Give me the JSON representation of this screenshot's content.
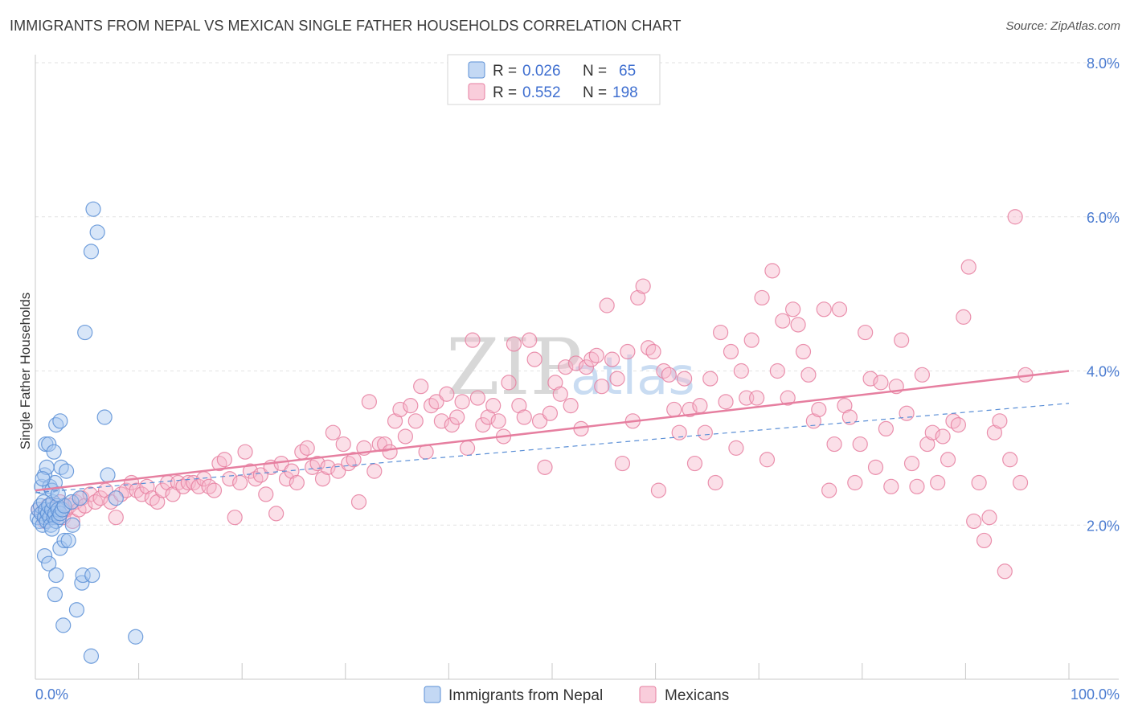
{
  "header": {
    "title": "IMMIGRANTS FROM NEPAL VS MEXICAN SINGLE FATHER HOUSEHOLDS CORRELATION CHART",
    "source": "Source: ZipAtlas.com"
  },
  "watermark": {
    "zip": "ZIP",
    "atlas": "atlas"
  },
  "legend": {
    "r_label": "R =",
    "n_label": "N =",
    "rows": [
      {
        "name": "Immigrants from Nepal",
        "r": "0.026",
        "n": "65",
        "fill": "#a9c8f0",
        "stroke": "#5b8fd6"
      },
      {
        "name": "Mexicans",
        "r": "0.552",
        "n": "198",
        "fill": "#f6b8cc",
        "stroke": "#e67fa0"
      }
    ]
  },
  "chart_data": {
    "type": "scatter",
    "title": "IMMIGRANTS FROM NEPAL VS MEXICAN SINGLE FATHER HOUSEHOLDS CORRELATION CHART",
    "xlabel": "",
    "ylabel": "Single Father Households",
    "xlim": [
      0,
      100
    ],
    "ylim": [
      0,
      8
    ],
    "x_tick_labels": [
      "0.0%",
      "100.0%"
    ],
    "y_ticks": [
      2,
      4,
      6,
      8
    ],
    "y_tick_labels": [
      "2.0%",
      "4.0%",
      "6.0%",
      "8.0%"
    ],
    "series": [
      {
        "name": "Immigrants from Nepal",
        "color": "#5b8fd6",
        "fill": "#a9c8f0",
        "trend": {
          "x0": 0,
          "y0": 2.42,
          "x1": 100,
          "y1": 3.58,
          "style": "dashed"
        },
        "points": [
          [
            0.2,
            2.1
          ],
          [
            0.3,
            2.2
          ],
          [
            0.4,
            2.05
          ],
          [
            0.5,
            2.25
          ],
          [
            0.6,
            2.15
          ],
          [
            0.7,
            2.0
          ],
          [
            0.8,
            2.3
          ],
          [
            0.9,
            2.1
          ],
          [
            1.0,
            2.2
          ],
          [
            1.1,
            2.05
          ],
          [
            1.2,
            2.15
          ],
          [
            1.3,
            2.25
          ],
          [
            1.4,
            2.1
          ],
          [
            1.5,
            2.0
          ],
          [
            1.6,
            2.2
          ],
          [
            1.7,
            2.3
          ],
          [
            1.8,
            2.1
          ],
          [
            1.9,
            2.15
          ],
          [
            2.0,
            2.05
          ],
          [
            2.1,
            2.25
          ],
          [
            2.2,
            2.2
          ],
          [
            2.3,
            2.1
          ],
          [
            2.4,
            2.15
          ],
          [
            2.6,
            2.2
          ],
          [
            2.8,
            2.25
          ],
          [
            0.6,
            2.5
          ],
          [
            0.9,
            2.65
          ],
          [
            1.1,
            2.75
          ],
          [
            1.4,
            2.5
          ],
          [
            1.6,
            2.45
          ],
          [
            1.9,
            2.55
          ],
          [
            2.2,
            2.4
          ],
          [
            2.5,
            2.75
          ],
          [
            3.0,
            2.7
          ],
          [
            3.5,
            2.3
          ],
          [
            0.7,
            2.6
          ],
          [
            1.0,
            3.05
          ],
          [
            1.3,
            3.05
          ],
          [
            1.8,
            2.95
          ],
          [
            2.0,
            3.3
          ],
          [
            2.4,
            3.35
          ],
          [
            0.9,
            1.6
          ],
          [
            1.3,
            1.5
          ],
          [
            1.6,
            1.95
          ],
          [
            2.0,
            1.35
          ],
          [
            2.4,
            1.7
          ],
          [
            2.8,
            1.8
          ],
          [
            3.2,
            1.8
          ],
          [
            1.9,
            1.1
          ],
          [
            2.7,
            0.7
          ],
          [
            3.6,
            2.0
          ],
          [
            4.0,
            0.9
          ],
          [
            4.5,
            1.25
          ],
          [
            4.6,
            1.35
          ],
          [
            5.5,
            1.35
          ],
          [
            7.0,
            2.65
          ],
          [
            6.7,
            3.4
          ],
          [
            7.8,
            2.35
          ],
          [
            4.8,
            4.5
          ],
          [
            5.4,
            5.55
          ],
          [
            6.0,
            5.8
          ],
          [
            5.6,
            6.1
          ],
          [
            9.7,
            0.55
          ],
          [
            4.3,
            2.35
          ],
          [
            5.4,
            0.3
          ]
        ]
      },
      {
        "name": "Mexicans",
        "color": "#e67fa0",
        "fill": "#f6b8cc",
        "trend": {
          "x0": 0,
          "y0": 2.45,
          "x1": 100,
          "y1": 4.0,
          "style": "solid"
        },
        "points": [
          [
            0.3,
            2.2
          ],
          [
            0.6,
            2.15
          ],
          [
            0.9,
            2.05
          ],
          [
            1.2,
            2.25
          ],
          [
            1.5,
            2.1
          ],
          [
            1.8,
            2.2
          ],
          [
            2.1,
            2.15
          ],
          [
            2.4,
            2.3
          ],
          [
            2.7,
            2.1
          ],
          [
            3.0,
            2.2
          ],
          [
            3.3,
            2.25
          ],
          [
            3.6,
            2.05
          ],
          [
            3.9,
            2.3
          ],
          [
            4.2,
            2.2
          ],
          [
            4.5,
            2.35
          ],
          [
            4.8,
            2.25
          ],
          [
            5.3,
            2.4
          ],
          [
            5.8,
            2.3
          ],
          [
            6.3,
            2.35
          ],
          [
            6.8,
            2.45
          ],
          [
            7.3,
            2.3
          ],
          [
            7.8,
            2.1
          ],
          [
            8.3,
            2.4
          ],
          [
            8.8,
            2.45
          ],
          [
            9.3,
            2.55
          ],
          [
            9.8,
            2.45
          ],
          [
            10.3,
            2.4
          ],
          [
            10.8,
            2.5
          ],
          [
            11.3,
            2.35
          ],
          [
            11.8,
            2.3
          ],
          [
            12.3,
            2.45
          ],
          [
            12.8,
            2.55
          ],
          [
            13.3,
            2.4
          ],
          [
            13.8,
            2.55
          ],
          [
            14.3,
            2.5
          ],
          [
            14.8,
            2.55
          ],
          [
            15.3,
            2.55
          ],
          [
            15.8,
            2.5
          ],
          [
            16.3,
            2.6
          ],
          [
            16.8,
            2.5
          ],
          [
            17.3,
            2.45
          ],
          [
            17.8,
            2.8
          ],
          [
            18.3,
            2.85
          ],
          [
            18.8,
            2.6
          ],
          [
            19.3,
            2.1
          ],
          [
            19.8,
            2.55
          ],
          [
            20.3,
            2.95
          ],
          [
            20.8,
            2.7
          ],
          [
            21.3,
            2.6
          ],
          [
            21.8,
            2.65
          ],
          [
            22.3,
            2.4
          ],
          [
            22.8,
            2.75
          ],
          [
            23.3,
            2.15
          ],
          [
            23.8,
            2.8
          ],
          [
            24.3,
            2.6
          ],
          [
            24.8,
            2.7
          ],
          [
            25.3,
            2.55
          ],
          [
            25.8,
            2.95
          ],
          [
            26.3,
            3.0
          ],
          [
            26.8,
            2.75
          ],
          [
            27.3,
            2.8
          ],
          [
            27.8,
            2.6
          ],
          [
            28.3,
            2.75
          ],
          [
            28.8,
            3.2
          ],
          [
            29.3,
            2.7
          ],
          [
            29.8,
            3.05
          ],
          [
            30.3,
            2.8
          ],
          [
            30.8,
            2.85
          ],
          [
            31.3,
            2.3
          ],
          [
            31.8,
            3.0
          ],
          [
            32.3,
            3.6
          ],
          [
            32.8,
            2.7
          ],
          [
            33.3,
            3.05
          ],
          [
            33.8,
            3.05
          ],
          [
            34.3,
            2.95
          ],
          [
            34.8,
            3.35
          ],
          [
            35.3,
            3.5
          ],
          [
            35.8,
            3.15
          ],
          [
            36.3,
            3.55
          ],
          [
            36.8,
            3.35
          ],
          [
            37.3,
            3.8
          ],
          [
            37.8,
            2.95
          ],
          [
            38.3,
            3.55
          ],
          [
            38.8,
            3.6
          ],
          [
            39.3,
            3.35
          ],
          [
            39.8,
            3.7
          ],
          [
            40.3,
            3.3
          ],
          [
            40.8,
            3.4
          ],
          [
            41.3,
            3.6
          ],
          [
            41.8,
            3.0
          ],
          [
            42.3,
            4.4
          ],
          [
            42.8,
            3.65
          ],
          [
            43.3,
            3.3
          ],
          [
            43.8,
            3.4
          ],
          [
            44.3,
            3.55
          ],
          [
            44.8,
            3.35
          ],
          [
            45.3,
            3.15
          ],
          [
            45.8,
            3.85
          ],
          [
            46.3,
            4.35
          ],
          [
            46.8,
            3.55
          ],
          [
            47.3,
            3.4
          ],
          [
            47.8,
            4.4
          ],
          [
            48.3,
            4.15
          ],
          [
            48.8,
            3.35
          ],
          [
            49.3,
            2.75
          ],
          [
            49.8,
            3.45
          ],
          [
            50.3,
            3.85
          ],
          [
            50.8,
            3.7
          ],
          [
            51.3,
            4.05
          ],
          [
            51.8,
            3.55
          ],
          [
            52.3,
            4.1
          ],
          [
            52.8,
            3.25
          ],
          [
            53.3,
            4.05
          ],
          [
            53.8,
            4.15
          ],
          [
            54.3,
            4.2
          ],
          [
            54.8,
            3.8
          ],
          [
            55.3,
            4.85
          ],
          [
            55.8,
            4.15
          ],
          [
            56.3,
            3.9
          ],
          [
            56.8,
            2.8
          ],
          [
            57.3,
            4.25
          ],
          [
            57.8,
            3.35
          ],
          [
            58.3,
            4.95
          ],
          [
            58.8,
            5.1
          ],
          [
            59.3,
            4.3
          ],
          [
            59.8,
            4.25
          ],
          [
            60.3,
            2.45
          ],
          [
            60.8,
            4.0
          ],
          [
            61.3,
            3.95
          ],
          [
            61.8,
            3.5
          ],
          [
            62.3,
            3.2
          ],
          [
            62.8,
            3.9
          ],
          [
            63.3,
            3.5
          ],
          [
            63.8,
            2.8
          ],
          [
            64.3,
            3.55
          ],
          [
            64.8,
            3.2
          ],
          [
            65.3,
            3.9
          ],
          [
            65.8,
            2.55
          ],
          [
            66.3,
            4.5
          ],
          [
            66.8,
            3.6
          ],
          [
            67.3,
            4.25
          ],
          [
            67.8,
            3.0
          ],
          [
            68.3,
            4.0
          ],
          [
            68.8,
            3.65
          ],
          [
            69.3,
            4.4
          ],
          [
            69.8,
            3.65
          ],
          [
            70.3,
            4.95
          ],
          [
            70.8,
            2.85
          ],
          [
            71.3,
            5.3
          ],
          [
            71.8,
            4.0
          ],
          [
            72.3,
            4.65
          ],
          [
            72.8,
            3.65
          ],
          [
            73.3,
            4.8
          ],
          [
            73.8,
            4.6
          ],
          [
            74.3,
            4.25
          ],
          [
            74.8,
            3.95
          ],
          [
            75.3,
            3.35
          ],
          [
            75.8,
            3.5
          ],
          [
            76.3,
            4.8
          ],
          [
            76.8,
            2.45
          ],
          [
            77.3,
            3.05
          ],
          [
            77.8,
            4.8
          ],
          [
            78.3,
            3.55
          ],
          [
            78.8,
            3.4
          ],
          [
            79.3,
            2.55
          ],
          [
            79.8,
            3.05
          ],
          [
            80.3,
            4.5
          ],
          [
            80.8,
            3.9
          ],
          [
            81.3,
            2.75
          ],
          [
            81.8,
            3.85
          ],
          [
            82.3,
            3.25
          ],
          [
            82.8,
            2.5
          ],
          [
            83.3,
            3.8
          ],
          [
            83.8,
            4.4
          ],
          [
            84.3,
            3.45
          ],
          [
            84.8,
            2.8
          ],
          [
            85.3,
            2.5
          ],
          [
            85.8,
            3.95
          ],
          [
            86.3,
            3.05
          ],
          [
            86.8,
            3.2
          ],
          [
            87.3,
            2.55
          ],
          [
            87.8,
            3.15
          ],
          [
            88.3,
            2.85
          ],
          [
            88.8,
            3.35
          ],
          [
            89.3,
            3.3
          ],
          [
            89.8,
            4.7
          ],
          [
            90.3,
            5.35
          ],
          [
            90.8,
            2.05
          ],
          [
            91.3,
            2.55
          ],
          [
            91.8,
            1.8
          ],
          [
            92.3,
            2.1
          ],
          [
            92.8,
            3.2
          ],
          [
            93.3,
            3.35
          ],
          [
            93.8,
            1.4
          ],
          [
            94.3,
            2.85
          ],
          [
            94.8,
            6.0
          ],
          [
            95.3,
            2.55
          ],
          [
            95.8,
            3.95
          ]
        ]
      }
    ]
  }
}
